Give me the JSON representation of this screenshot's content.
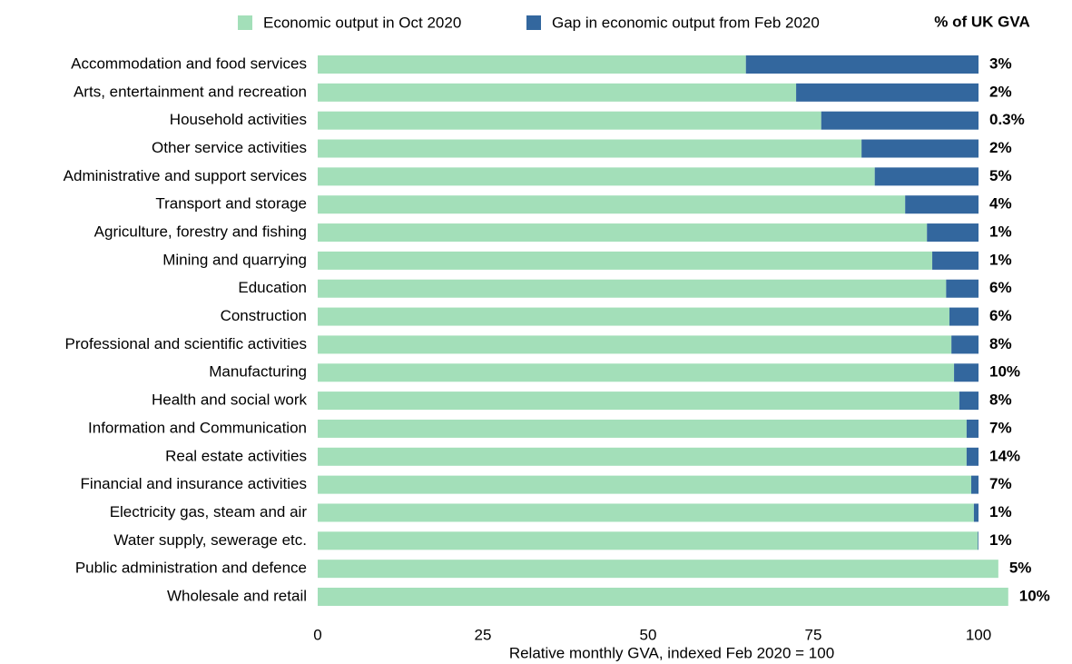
{
  "chart_data": {
    "type": "stacked_barh",
    "x_label": "Relative monthly GVA, indexed Feb 2020 = 100",
    "annotation_header": "% of UK GVA",
    "categories": [
      "Accommodation and food services",
      "Arts, entertainment and recreation",
      "Household activities",
      "Other service activities",
      "Administrative and support services",
      "Transport and storage",
      "Agriculture, forestry and fishing",
      "Mining and quarrying",
      "Education",
      "Construction",
      "Professional and scientific activities",
      "Manufacturing",
      "Health and social work",
      "Information and Communication",
      "Real estate activities",
      "Financial and insurance activities",
      "Electricity gas, steam and air",
      "Water supply, sewerage etc.",
      "Public administration and defence",
      "Wholesale and retail"
    ],
    "series": [
      {
        "name": "Economic output in Oct 2020",
        "color": "#a3dfb9",
        "values": [
          64.8,
          72.4,
          76.2,
          82.3,
          84.3,
          88.9,
          92.2,
          93.0,
          95.1,
          95.6,
          95.9,
          96.3,
          97.1,
          98.2,
          98.2,
          98.9,
          99.3,
          99.9,
          103.0,
          104.5
        ]
      },
      {
        "name": "Gap in economic output from Feb 2020",
        "color": "#33679e",
        "values": [
          35.2,
          27.6,
          23.8,
          17.7,
          15.7,
          11.1,
          7.8,
          7.0,
          4.9,
          4.4,
          4.1,
          3.7,
          2.9,
          1.8,
          1.8,
          1.1,
          0.7,
          0.1,
          0,
          0
        ]
      }
    ],
    "gva_labels": [
      "3%",
      "2%",
      "0.3%",
      "2%",
      "5%",
      "4%",
      "1%",
      "1%",
      "6%",
      "6%",
      "8%",
      "10%",
      "8%",
      "7%",
      "14%",
      "7%",
      "1%",
      "1%",
      "5%",
      "10%"
    ],
    "xlim": [
      0,
      105
    ],
    "xticks": [
      0,
      25,
      50,
      75,
      100
    ],
    "grid": false
  }
}
